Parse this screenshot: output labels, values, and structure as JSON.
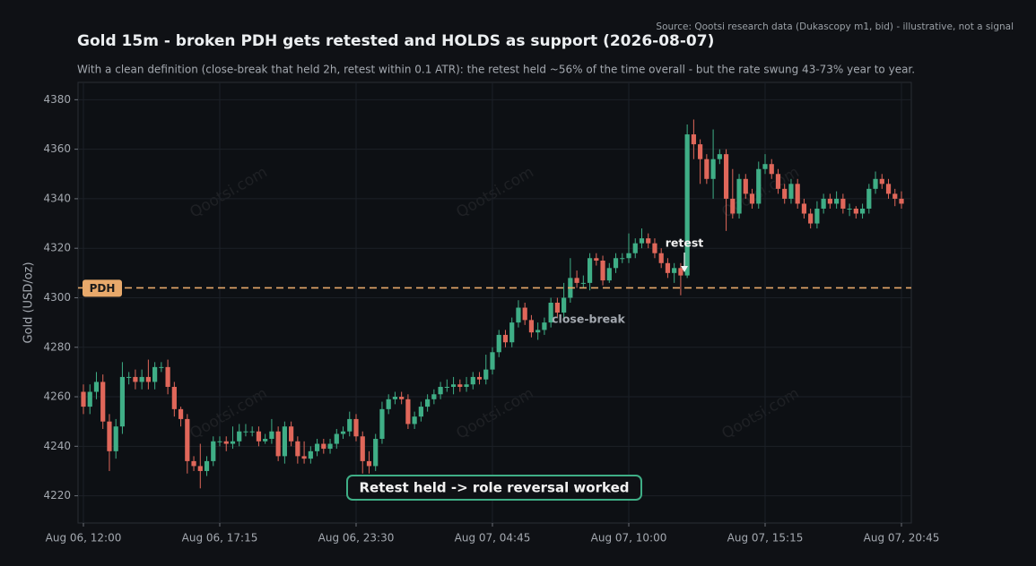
{
  "chart_data": {
    "type": "candlestick",
    "title": "Gold 15m - broken PDH gets retested and HOLDS as support (2026-08-07)",
    "subtitle": "With a clean definition (close-break that held 2h, retest within 0.1 ATR): the retest held ~56% of the time overall - but the rate swung 43-73% year to year.",
    "source": "Source: Qootsi research data (Dukascopy m1, bid) - illustrative, not a signal",
    "ylabel": "Gold (USD/oz)",
    "watermark": "Qootsi.com",
    "categories": [
      "Aug 06, 12:00",
      null,
      null,
      null,
      null,
      null,
      null,
      null,
      null,
      null,
      null,
      null,
      null,
      null,
      null,
      null,
      null,
      null,
      null,
      null,
      null,
      "Aug 06, 17:15",
      null,
      null,
      null,
      null,
      null,
      null,
      null,
      null,
      null,
      null,
      null,
      null,
      null,
      null,
      null,
      null,
      null,
      null,
      null,
      null,
      "Aug 06, 23:30",
      null,
      null,
      null,
      null,
      null,
      null,
      null,
      null,
      null,
      null,
      null,
      null,
      null,
      null,
      null,
      null,
      null,
      null,
      null,
      null,
      "Aug 07, 04:45",
      null,
      null,
      null,
      null,
      null,
      null,
      null,
      null,
      null,
      null,
      null,
      null,
      null,
      null,
      null,
      null,
      null,
      null,
      null,
      null,
      "Aug 07, 10:00",
      null,
      null,
      null,
      null,
      null,
      null,
      null,
      null,
      null,
      null,
      null,
      null,
      null,
      null,
      null,
      null,
      null,
      null,
      null,
      null,
      "Aug 07, 15:15",
      null,
      null,
      null,
      null,
      null,
      null,
      null,
      null,
      null,
      null,
      null,
      null,
      null,
      null,
      null,
      null,
      null,
      null,
      null,
      null,
      "Aug 07, 20:45"
    ],
    "open": [
      4262,
      4256,
      4262,
      4266,
      4250,
      4238,
      4248,
      4268,
      4268,
      4266,
      4268,
      4266,
      4272,
      4272,
      4264,
      4255,
      4251,
      4234,
      4232,
      4230,
      4234,
      4242,
      4242,
      4241,
      4242,
      4246,
      4246,
      4246,
      4242,
      4243,
      4246,
      4236,
      4248,
      4242,
      4236,
      4235,
      4238,
      4241,
      4239,
      4241,
      4245,
      4246,
      4251,
      4244,
      4234,
      4232,
      4243,
      4255,
      4259,
      4260,
      4259,
      4249,
      4252,
      4256,
      4259,
      4261,
      4264,
      4264,
      4265,
      4264,
      4265,
      4268,
      4267,
      4271,
      4278,
      4285,
      4282,
      4290,
      4296,
      4291,
      4286,
      4287,
      4290,
      4298,
      4294,
      4300,
      4308,
      4306,
      4306,
      4316,
      4315,
      4307,
      4312,
      4316,
      4316,
      4318,
      4322,
      4324,
      4322,
      4318,
      4314,
      4310,
      4312,
      4309,
      4366,
      4362,
      4356,
      4348,
      4356,
      4358,
      4340,
      4334,
      4348,
      4342,
      4338,
      4352,
      4354,
      4350,
      4344,
      4340,
      4346,
      4338,
      4334,
      4330,
      4336,
      4340,
      4338,
      4340,
      4336,
      4336,
      4334,
      4336,
      4344,
      4348,
      4346,
      4342,
      4340
    ],
    "high": [
      4265,
      4265,
      4270,
      4269,
      4253,
      4251,
      4274,
      4270,
      4271,
      4271,
      4275,
      4274,
      4274,
      4275,
      4266,
      4256,
      4253,
      4236,
      4241,
      4236,
      4244,
      4244,
      4244,
      4248,
      4249,
      4249,
      4248,
      4248,
      4245,
      4251,
      4248,
      4250,
      4250,
      4244,
      4242,
      4240,
      4243,
      4243,
      4243,
      4247,
      4248,
      4254,
      4253,
      4246,
      4238,
      4245,
      4258,
      4261,
      4262,
      4262,
      4261,
      4254,
      4258,
      4261,
      4263,
      4266,
      4267,
      4268,
      4267,
      4268,
      4270,
      4270,
      4277,
      4280,
      4287,
      4287,
      4292,
      4299,
      4298,
      4293,
      4290,
      4292,
      4300,
      4300,
      4306,
      4316,
      4311,
      4309,
      4318,
      4318,
      4317,
      4314,
      4318,
      4318,
      4326,
      4324,
      4328,
      4326,
      4324,
      4320,
      4316,
      4314,
      4314,
      4370,
      4372,
      4364,
      4358,
      4368,
      4360,
      4360,
      4352,
      4350,
      4350,
      4344,
      4355,
      4358,
      4356,
      4352,
      4346,
      4348,
      4348,
      4340,
      4336,
      4339,
      4342,
      4342,
      4343,
      4342,
      4338,
      4337,
      4338,
      4346,
      4351,
      4350,
      4348,
      4344,
      4343
    ],
    "low": [
      4253,
      4253,
      4259,
      4247,
      4230,
      4235,
      4245,
      4265,
      4263,
      4263,
      4263,
      4263,
      4270,
      4261,
      4252,
      4248,
      4229,
      4230,
      4223,
      4228,
      4232,
      4240,
      4238,
      4239,
      4240,
      4244,
      4244,
      4240,
      4241,
      4241,
      4234,
      4233,
      4240,
      4233,
      4233,
      4233,
      4236,
      4237,
      4237,
      4239,
      4243,
      4244,
      4242,
      4229,
      4229,
      4230,
      4241,
      4253,
      4257,
      4257,
      4247,
      4247,
      4250,
      4254,
      4257,
      4259,
      4262,
      4261,
      4262,
      4262,
      4263,
      4265,
      4265,
      4269,
      4276,
      4280,
      4280,
      4288,
      4289,
      4284,
      4283,
      4285,
      4288,
      4292,
      4292,
      4298,
      4304,
      4304,
      4303,
      4313,
      4305,
      4306,
      4310,
      4314,
      4314,
      4316,
      4320,
      4320,
      4316,
      4312,
      4308,
      4306,
      4301,
      4308,
      4356,
      4346,
      4346,
      4340,
      4354,
      4327,
      4332,
      4332,
      4340,
      4336,
      4336,
      4350,
      4348,
      4342,
      4338,
      4338,
      4336,
      4332,
      4328,
      4328,
      4334,
      4336,
      4336,
      4334,
      4333,
      4332,
      4332,
      4334,
      4342,
      4344,
      4340,
      4337,
      4336
    ],
    "close": [
      4256,
      4262,
      4266,
      4250,
      4238,
      4248,
      4268,
      4268,
      4266,
      4268,
      4266,
      4272,
      4272,
      4264,
      4255,
      4251,
      4234,
      4232,
      4230,
      4234,
      4242,
      4242,
      4241,
      4242,
      4246,
      4246,
      4246,
      4242,
      4243,
      4246,
      4236,
      4248,
      4242,
      4236,
      4235,
      4238,
      4241,
      4239,
      4241,
      4245,
      4246,
      4251,
      4244,
      4234,
      4232,
      4243,
      4255,
      4259,
      4260,
      4259,
      4249,
      4252,
      4256,
      4259,
      4261,
      4264,
      4264,
      4265,
      4264,
      4265,
      4268,
      4267,
      4271,
      4278,
      4285,
      4282,
      4290,
      4296,
      4291,
      4286,
      4287,
      4290,
      4298,
      4294,
      4300,
      4308,
      4306,
      4306,
      4316,
      4315,
      4307,
      4312,
      4316,
      4316,
      4318,
      4322,
      4324,
      4322,
      4318,
      4314,
      4310,
      4312,
      4309,
      4366,
      4362,
      4356,
      4348,
      4356,
      4358,
      4340,
      4334,
      4348,
      4342,
      4338,
      4352,
      4354,
      4350,
      4344,
      4340,
      4346,
      4338,
      4334,
      4330,
      4336,
      4340,
      4338,
      4340,
      4336,
      4336,
      4334,
      4336,
      4344,
      4348,
      4346,
      4342,
      4340,
      4338
    ],
    "up_color": "#3fae86",
    "down_color": "#e0675a",
    "ylim": [
      4209,
      4387
    ],
    "yticks": [
      4220,
      4240,
      4260,
      4280,
      4300,
      4320,
      4340,
      4360,
      4380
    ],
    "grid": true,
    "level": {
      "label": "PDH",
      "value": 4304,
      "color": "#e8a96b"
    },
    "annotations": {
      "retest": "retest",
      "break": "close-break",
      "verdict": "Retest held -> role reversal worked"
    }
  }
}
